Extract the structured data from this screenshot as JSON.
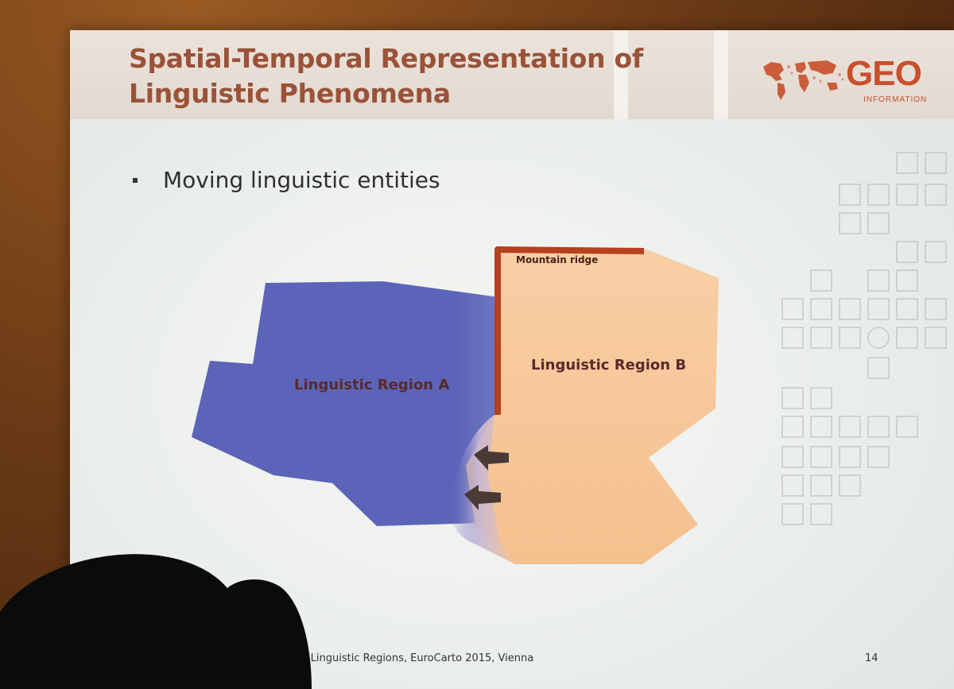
{
  "slide": {
    "title_line1": "Spatial-Temporal Representation of",
    "title_line2": "Linguistic Phenomena",
    "logo_text": "GEO",
    "logo_sub": "INFORMATION",
    "bullet": "Moving linguistic entities",
    "map": {
      "region_a_label": "Linguistic Region A",
      "region_b_label": "Linguistic Region B",
      "ridge_label": "Mountain ridge",
      "colors": {
        "region_a": "#5b64b8",
        "region_b": "#f7c697",
        "ridge": "#b5411e",
        "arrow": "#4a3a36"
      }
    },
    "footer": "of Linguistic Regions, EuroCarto 2015, Vienna",
    "page_number": "14"
  }
}
